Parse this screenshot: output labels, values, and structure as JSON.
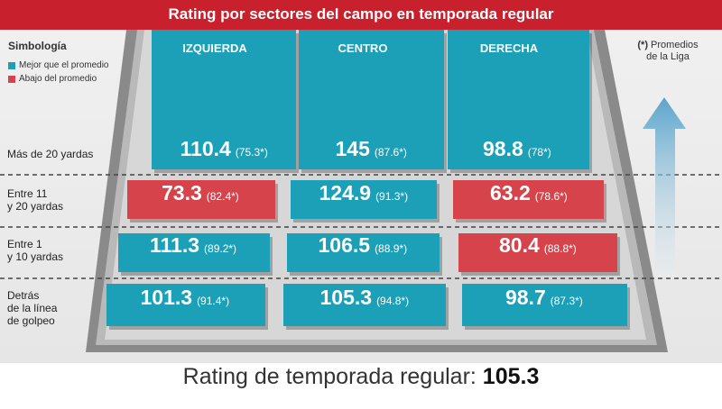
{
  "title": "Rating por sectores del campo en temporada regular",
  "legend": {
    "title": "Simbología",
    "items": [
      {
        "label": "Mejor que el promedio",
        "color": "#1ba0b8"
      },
      {
        "label": "Abajo del promedio",
        "color": "#d7434b"
      }
    ]
  },
  "note": {
    "prefix": "(*)",
    "text_line1": "Promedios",
    "text_line2": "de la Liga"
  },
  "columns": [
    "IZQUIERDA",
    "CENTRO",
    "DERECHA"
  ],
  "rows": [
    {
      "label_lines": [
        "Más de 20 yardas"
      ]
    },
    {
      "label_lines": [
        "Entre 11",
        "y 20 yardas"
      ]
    },
    {
      "label_lines": [
        "Entre 1",
        "y 10 yardas"
      ]
    },
    {
      "label_lines": [
        "Detrás",
        "de la línea",
        "de golpeo"
      ]
    }
  ],
  "cells": [
    [
      {
        "value": "110.4",
        "avg": "(75.3*)",
        "status": "above"
      },
      {
        "value": "145",
        "avg": "(87.6*)",
        "status": "above"
      },
      {
        "value": "98.8",
        "avg": "(78*)",
        "status": "above"
      }
    ],
    [
      {
        "value": "73.3",
        "avg": "(82.4*)",
        "status": "below"
      },
      {
        "value": "124.9",
        "avg": "(91.3*)",
        "status": "above"
      },
      {
        "value": "63.2",
        "avg": "(78.6*)",
        "status": "below"
      }
    ],
    [
      {
        "value": "111.3",
        "avg": "(89.2*)",
        "status": "above"
      },
      {
        "value": "106.5",
        "avg": "(88.9*)",
        "status": "above"
      },
      {
        "value": "80.4",
        "avg": "(88.8*)",
        "status": "below"
      }
    ],
    [
      {
        "value": "101.3",
        "avg": "(91.4*)",
        "status": "above"
      },
      {
        "value": "105.3",
        "avg": "(94.8*)",
        "status": "above"
      },
      {
        "value": "98.7",
        "avg": "(87.3*)",
        "status": "above"
      }
    ]
  ],
  "footer": {
    "label": "Rating de temporada regular:",
    "value": "105.3"
  },
  "colors": {
    "above": "#1ba0b8",
    "below": "#d7434b",
    "title_bg": "#c8202c"
  }
}
